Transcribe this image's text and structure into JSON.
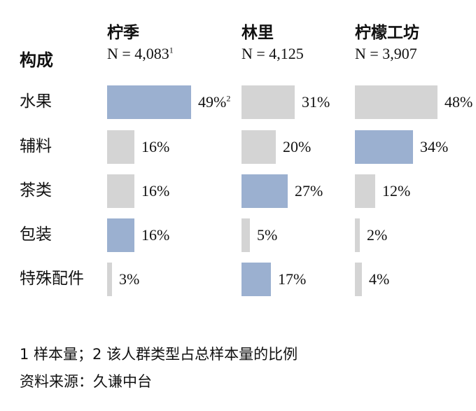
{
  "chart_data": {
    "type": "bar",
    "row_header": "构成",
    "categories": [
      "水果",
      "辅料",
      "茶类",
      "包装",
      "特殊配件"
    ],
    "series": [
      {
        "name": "柠季",
        "n_label": "N = 4,083",
        "n_sup": "1",
        "values": [
          49,
          16,
          16,
          16,
          3
        ],
        "highlight": [
          true,
          false,
          false,
          true,
          false
        ]
      },
      {
        "name": "林里",
        "n_label": "N = 4,125",
        "n_sup": "",
        "values": [
          31,
          20,
          27,
          5,
          17
        ],
        "highlight": [
          false,
          false,
          true,
          false,
          true
        ]
      },
      {
        "name": "柠檬工坊",
        "n_label": "N = 3,907",
        "n_sup": "",
        "values": [
          48,
          34,
          12,
          2,
          4
        ],
        "highlight": [
          false,
          true,
          false,
          false,
          false
        ]
      }
    ],
    "value_suffix": "%",
    "first_value_sup": "2",
    "colors": {
      "highlight": "#9bb0d0",
      "normal": "#d4d4d4"
    }
  },
  "footnote": "1 样本量；2 该人群类型占总样本量的比例",
  "source": "资料来源：久谦中台"
}
